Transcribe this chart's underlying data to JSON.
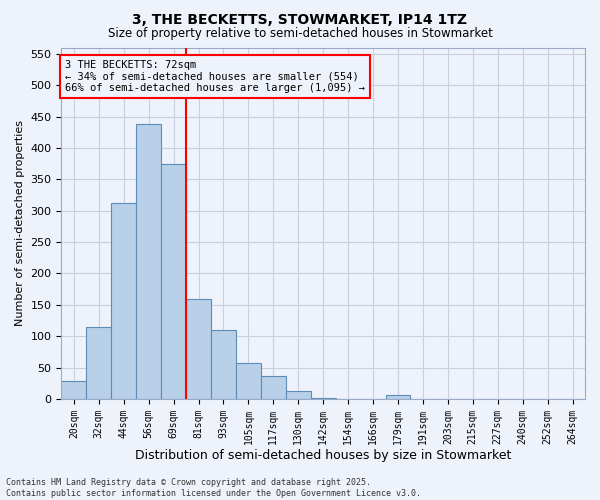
{
  "title": "3, THE BECKETTS, STOWMARKET, IP14 1TZ",
  "subtitle": "Size of property relative to semi-detached houses in Stowmarket",
  "xlabel": "Distribution of semi-detached houses by size in Stowmarket",
  "ylabel": "Number of semi-detached properties",
  "categories": [
    "20sqm",
    "32sqm",
    "44sqm",
    "56sqm",
    "69sqm",
    "81sqm",
    "93sqm",
    "105sqm",
    "117sqm",
    "130sqm",
    "142sqm",
    "154sqm",
    "166sqm",
    "179sqm",
    "191sqm",
    "203sqm",
    "215sqm",
    "227sqm",
    "240sqm",
    "252sqm",
    "264sqm"
  ],
  "values": [
    28,
    115,
    312,
    438,
    375,
    160,
    110,
    58,
    37,
    12,
    1,
    0,
    0,
    6,
    0,
    0,
    0,
    0,
    0,
    0,
    0
  ],
  "bar_color": "#b8d0e8",
  "bar_edge_color": "#5b8db8",
  "grid_color": "#c8cfe0",
  "background_color": "#eef2fa",
  "annotation_text": "3 THE BECKETTS: 72sqm\n← 34% of semi-detached houses are smaller (554)\n66% of semi-detached houses are larger (1,095) →",
  "vline_position": 4.5,
  "footer": "Contains HM Land Registry data © Crown copyright and database right 2025.\nContains public sector information licensed under the Open Government Licence v3.0.",
  "ylim": [
    0,
    560
  ],
  "yticks": [
    0,
    50,
    100,
    150,
    200,
    250,
    300,
    350,
    400,
    450,
    500,
    550
  ]
}
